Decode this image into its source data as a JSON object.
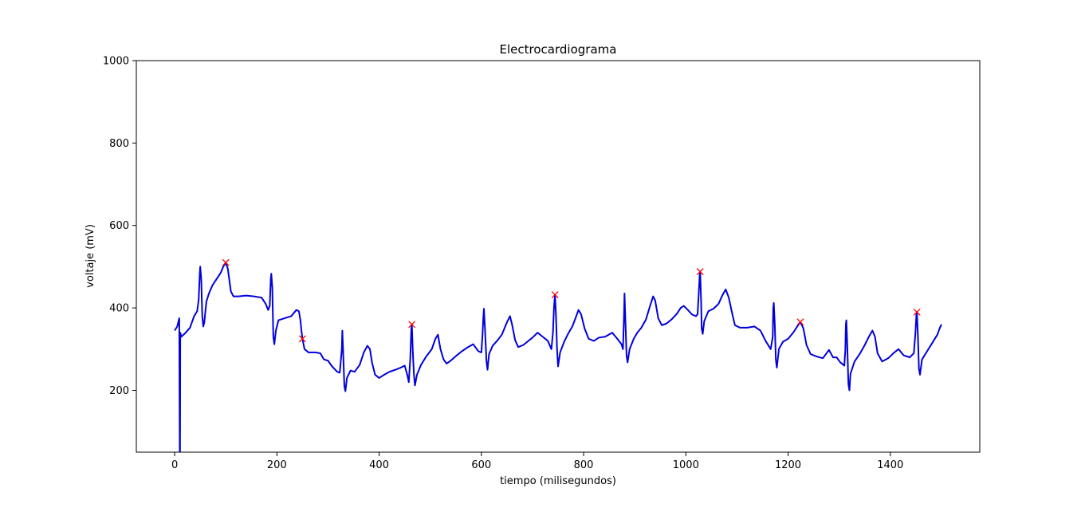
{
  "chart_data": {
    "type": "line",
    "title": "Electrocardiograma",
    "xlabel": "tiempo (milisegundos)",
    "ylabel": "voltaje (mV)",
    "xlim": [
      -75,
      1575
    ],
    "ylim": [
      50,
      1000
    ],
    "xticks": [
      0,
      200,
      400,
      600,
      800,
      1000,
      1200,
      1400
    ],
    "yticks": [
      200,
      400,
      600,
      800,
      1000
    ],
    "grid": false,
    "line_color": "#0000dd",
    "marker_color": "#ff0000",
    "series": [
      {
        "type": "line",
        "points": [
          [
            0,
            345
          ],
          [
            5,
            355
          ],
          [
            8,
            370
          ],
          [
            9,
            375
          ],
          [
            10,
            50
          ],
          [
            10.5,
            50
          ],
          [
            11,
            340
          ],
          [
            13,
            330
          ],
          [
            20,
            338
          ],
          [
            30,
            352
          ],
          [
            38,
            380
          ],
          [
            44,
            392
          ],
          [
            47,
            420
          ],
          [
            49,
            480
          ],
          [
            50,
            500
          ],
          [
            52,
            470
          ],
          [
            54,
            380
          ],
          [
            56,
            355
          ],
          [
            58,
            365
          ],
          [
            62,
            415
          ],
          [
            67,
            435
          ],
          [
            74,
            455
          ],
          [
            82,
            470
          ],
          [
            90,
            485
          ],
          [
            95,
            500
          ],
          [
            100,
            510
          ],
          [
            104,
            495
          ],
          [
            110,
            440
          ],
          [
            115,
            428
          ],
          [
            125,
            428
          ],
          [
            140,
            430
          ],
          [
            155,
            428
          ],
          [
            170,
            425
          ],
          [
            178,
            410
          ],
          [
            183,
            395
          ],
          [
            186,
            405
          ],
          [
            188,
            470
          ],
          [
            189,
            483
          ],
          [
            191,
            450
          ],
          [
            193,
            330
          ],
          [
            195,
            312
          ],
          [
            198,
            345
          ],
          [
            203,
            370
          ],
          [
            215,
            375
          ],
          [
            228,
            380
          ],
          [
            238,
            395
          ],
          [
            243,
            392
          ],
          [
            246,
            370
          ],
          [
            248,
            345
          ],
          [
            250,
            325
          ],
          [
            254,
            300
          ],
          [
            262,
            292
          ],
          [
            275,
            292
          ],
          [
            285,
            290
          ],
          [
            292,
            275
          ],
          [
            300,
            272
          ],
          [
            308,
            258
          ],
          [
            318,
            245
          ],
          [
            323,
            243
          ],
          [
            327,
            300
          ],
          [
            328,
            345
          ],
          [
            330,
            280
          ],
          [
            332,
            210
          ],
          [
            334,
            198
          ],
          [
            337,
            230
          ],
          [
            344,
            248
          ],
          [
            352,
            245
          ],
          [
            362,
            262
          ],
          [
            370,
            292
          ],
          [
            377,
            308
          ],
          [
            382,
            300
          ],
          [
            386,
            268
          ],
          [
            392,
            238
          ],
          [
            400,
            230
          ],
          [
            410,
            238
          ],
          [
            420,
            245
          ],
          [
            432,
            250
          ],
          [
            442,
            255
          ],
          [
            450,
            260
          ],
          [
            455,
            238
          ],
          [
            458,
            220
          ],
          [
            461,
            280
          ],
          [
            463,
            350
          ],
          [
            464,
            360
          ],
          [
            466,
            290
          ],
          [
            468,
            240
          ],
          [
            470,
            212
          ],
          [
            474,
            238
          ],
          [
            482,
            262
          ],
          [
            492,
            282
          ],
          [
            503,
            300
          ],
          [
            510,
            325
          ],
          [
            515,
            335
          ],
          [
            520,
            300
          ],
          [
            526,
            275
          ],
          [
            532,
            265
          ],
          [
            540,
            272
          ],
          [
            552,
            285
          ],
          [
            562,
            295
          ],
          [
            574,
            305
          ],
          [
            584,
            312
          ],
          [
            594,
            295
          ],
          [
            600,
            292
          ],
          [
            602,
            330
          ],
          [
            604,
            380
          ],
          [
            605,
            398
          ],
          [
            607,
            350
          ],
          [
            610,
            270
          ],
          [
            612,
            250
          ],
          [
            615,
            288
          ],
          [
            622,
            308
          ],
          [
            632,
            322
          ],
          [
            640,
            335
          ],
          [
            650,
            365
          ],
          [
            656,
            380
          ],
          [
            660,
            360
          ],
          [
            666,
            322
          ],
          [
            672,
            305
          ],
          [
            682,
            310
          ],
          [
            690,
            318
          ],
          [
            700,
            328
          ],
          [
            710,
            340
          ],
          [
            720,
            330
          ],
          [
            730,
            320
          ],
          [
            737,
            300
          ],
          [
            740,
            340
          ],
          [
            742,
            400
          ],
          [
            744,
            432
          ],
          [
            746,
            380
          ],
          [
            748,
            300
          ],
          [
            750,
            258
          ],
          [
            754,
            292
          ],
          [
            762,
            318
          ],
          [
            770,
            338
          ],
          [
            778,
            355
          ],
          [
            785,
            378
          ],
          [
            790,
            395
          ],
          [
            795,
            385
          ],
          [
            802,
            350
          ],
          [
            810,
            325
          ],
          [
            820,
            320
          ],
          [
            830,
            328
          ],
          [
            842,
            330
          ],
          [
            856,
            340
          ],
          [
            866,
            325
          ],
          [
            874,
            312
          ],
          [
            877,
            300
          ],
          [
            879,
            380
          ],
          [
            880,
            435
          ],
          [
            882,
            360
          ],
          [
            884,
            285
          ],
          [
            886,
            268
          ],
          [
            890,
            300
          ],
          [
            898,
            325
          ],
          [
            905,
            340
          ],
          [
            913,
            352
          ],
          [
            922,
            372
          ],
          [
            930,
            405
          ],
          [
            936,
            428
          ],
          [
            940,
            418
          ],
          [
            946,
            375
          ],
          [
            953,
            358
          ],
          [
            962,
            362
          ],
          [
            972,
            372
          ],
          [
            982,
            385
          ],
          [
            990,
            400
          ],
          [
            996,
            405
          ],
          [
            1004,
            395
          ],
          [
            1012,
            384
          ],
          [
            1020,
            380
          ],
          [
            1023,
            385
          ],
          [
            1025,
            430
          ],
          [
            1027,
            478
          ],
          [
            1028,
            488
          ],
          [
            1030,
            410
          ],
          [
            1031,
            350
          ],
          [
            1033,
            337
          ],
          [
            1036,
            368
          ],
          [
            1044,
            392
          ],
          [
            1054,
            398
          ],
          [
            1064,
            410
          ],
          [
            1072,
            432
          ],
          [
            1078,
            445
          ],
          [
            1084,
            425
          ],
          [
            1090,
            390
          ],
          [
            1096,
            358
          ],
          [
            1106,
            352
          ],
          [
            1120,
            352
          ],
          [
            1134,
            355
          ],
          [
            1146,
            345
          ],
          [
            1156,
            320
          ],
          [
            1166,
            300
          ],
          [
            1170,
            330
          ],
          [
            1171,
            400
          ],
          [
            1172,
            412
          ],
          [
            1174,
            360
          ],
          [
            1176,
            275
          ],
          [
            1178,
            255
          ],
          [
            1182,
            300
          ],
          [
            1190,
            318
          ],
          [
            1200,
            325
          ],
          [
            1210,
            340
          ],
          [
            1218,
            355
          ],
          [
            1224,
            366
          ],
          [
            1230,
            350
          ],
          [
            1236,
            310
          ],
          [
            1244,
            288
          ],
          [
            1256,
            282
          ],
          [
            1268,
            278
          ],
          [
            1280,
            298
          ],
          [
            1288,
            280
          ],
          [
            1295,
            280
          ],
          [
            1302,
            268
          ],
          [
            1310,
            260
          ],
          [
            1312,
            298
          ],
          [
            1313,
            360
          ],
          [
            1314,
            370
          ],
          [
            1316,
            300
          ],
          [
            1318,
            215
          ],
          [
            1320,
            200
          ],
          [
            1322,
            240
          ],
          [
            1330,
            270
          ],
          [
            1340,
            288
          ],
          [
            1350,
            310
          ],
          [
            1358,
            330
          ],
          [
            1365,
            345
          ],
          [
            1370,
            330
          ],
          [
            1375,
            290
          ],
          [
            1384,
            270
          ],
          [
            1396,
            278
          ],
          [
            1406,
            290
          ],
          [
            1416,
            300
          ],
          [
            1426,
            285
          ],
          [
            1438,
            280
          ],
          [
            1446,
            290
          ],
          [
            1449,
            338
          ],
          [
            1451,
            382
          ],
          [
            1452,
            390
          ],
          [
            1454,
            330
          ],
          [
            1456,
            252
          ],
          [
            1458,
            238
          ],
          [
            1462,
            275
          ],
          [
            1472,
            295
          ],
          [
            1482,
            315
          ],
          [
            1492,
            335
          ],
          [
            1497,
            352
          ],
          [
            1500,
            360
          ]
        ]
      },
      {
        "type": "scatter",
        "marker": "x",
        "points": [
          [
            100,
            510
          ],
          [
            250,
            325
          ],
          [
            464,
            360
          ],
          [
            744,
            432
          ],
          [
            1028,
            488
          ],
          [
            1224,
            366
          ],
          [
            1452,
            390
          ]
        ]
      }
    ]
  }
}
